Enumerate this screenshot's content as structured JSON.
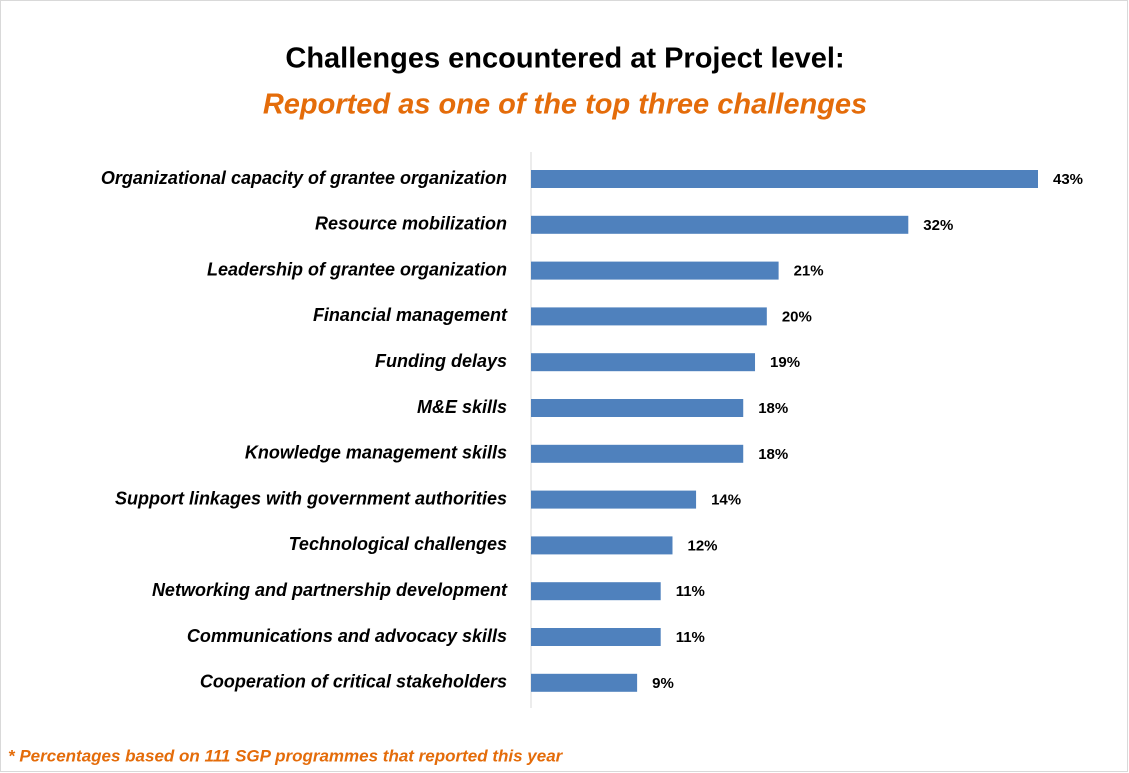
{
  "chart_data": {
    "type": "bar",
    "orientation": "horizontal",
    "title": "Challenges encountered at Project level:",
    "subtitle": "Reported as one of the top three challenges",
    "categories": [
      "Organizational capacity of grantee organization",
      "Resource mobilization",
      "Leadership of grantee organization",
      "Financial management",
      "Funding delays",
      "M&E skills",
      "Knowledge management skills",
      "Support linkages with government authorities",
      "Technological challenges",
      "Networking and partnership development",
      "Communications and advocacy skills",
      "Cooperation of critical stakeholders"
    ],
    "values": [
      43,
      32,
      21,
      20,
      19,
      18,
      18,
      14,
      12,
      11,
      11,
      9
    ],
    "value_labels": [
      "43%",
      "32%",
      "21%",
      "20%",
      "19%",
      "18%",
      "18%",
      "14%",
      "12%",
      "11%",
      "11%",
      "9%"
    ],
    "color": "#4f81bd",
    "footnote": "* Percentages based on 111 SGP programmes that reported this year"
  }
}
